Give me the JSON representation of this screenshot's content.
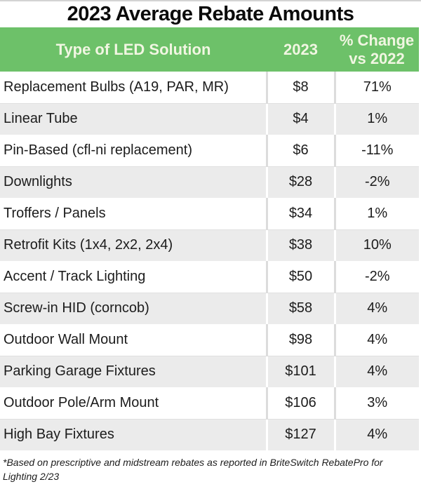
{
  "title": "2023 Average Rebate Amounts",
  "footnote": "*Based on prescriptive and midstream rebates as reported in BriteSwitch RebatePro for Lighting 2/23",
  "colors": {
    "header_bg": "#6DC169",
    "header_text": "#F1F6E2",
    "alt_row_bg": "#EBEBEB",
    "grid_line": "#DCDCDC",
    "title_text": "#0B0B0B",
    "body_text": "#1C1C1C"
  },
  "table": {
    "headers": [
      "Type of LED Solution",
      "2023",
      "% Change vs 2022"
    ],
    "rows": [
      [
        "Replacement Bulbs (A19, PAR, MR)",
        "$8",
        "71%"
      ],
      [
        "Linear Tube",
        "$4",
        "1%"
      ],
      [
        "Pin-Based (cfl-ni replacement)",
        "$6",
        "-11%"
      ],
      [
        "Downlights",
        "$28",
        "-2%"
      ],
      [
        "Troffers / Panels",
        "$34",
        "1%"
      ],
      [
        "Retrofit Kits (1x4, 2x2, 2x4)",
        "$38",
        "10%"
      ],
      [
        "Accent / Track Lighting",
        "$50",
        "-2%"
      ],
      [
        "Screw-in HID (corncob)",
        "$58",
        "4%"
      ],
      [
        "Outdoor Wall Mount",
        "$98",
        "4%"
      ],
      [
        "Parking Garage Fixtures",
        "$101",
        "4%"
      ],
      [
        "Outdoor Pole/Arm Mount",
        "$106",
        "3%"
      ],
      [
        "High Bay Fixtures",
        "$127",
        "4%"
      ]
    ]
  },
  "chart_data": {
    "type": "table",
    "title": "2023 Average Rebate Amounts",
    "columns": [
      "Type of LED Solution",
      "2023",
      "% Change vs 2022"
    ],
    "categories": [
      "Replacement Bulbs (A19, PAR, MR)",
      "Linear Tube",
      "Pin-Based (cfl-ni replacement)",
      "Downlights",
      "Troffers / Panels",
      "Retrofit Kits (1x4, 2x2, 2x4)",
      "Accent / Track Lighting",
      "Screw-in HID (corncob)",
      "Outdoor Wall Mount",
      "Parking Garage Fixtures",
      "Outdoor Pole/Arm Mount",
      "High Bay Fixtures"
    ],
    "series": [
      {
        "name": "2023 average rebate (USD)",
        "values": [
          8,
          4,
          6,
          28,
          34,
          38,
          50,
          58,
          98,
          101,
          106,
          127
        ]
      },
      {
        "name": "% change vs 2022",
        "values": [
          71,
          1,
          -11,
          -2,
          1,
          10,
          -2,
          4,
          4,
          4,
          3,
          4
        ]
      }
    ],
    "footnote": "*Based on prescriptive and midstream rebates as reported in BriteSwitch RebatePro for Lighting 2/23"
  }
}
